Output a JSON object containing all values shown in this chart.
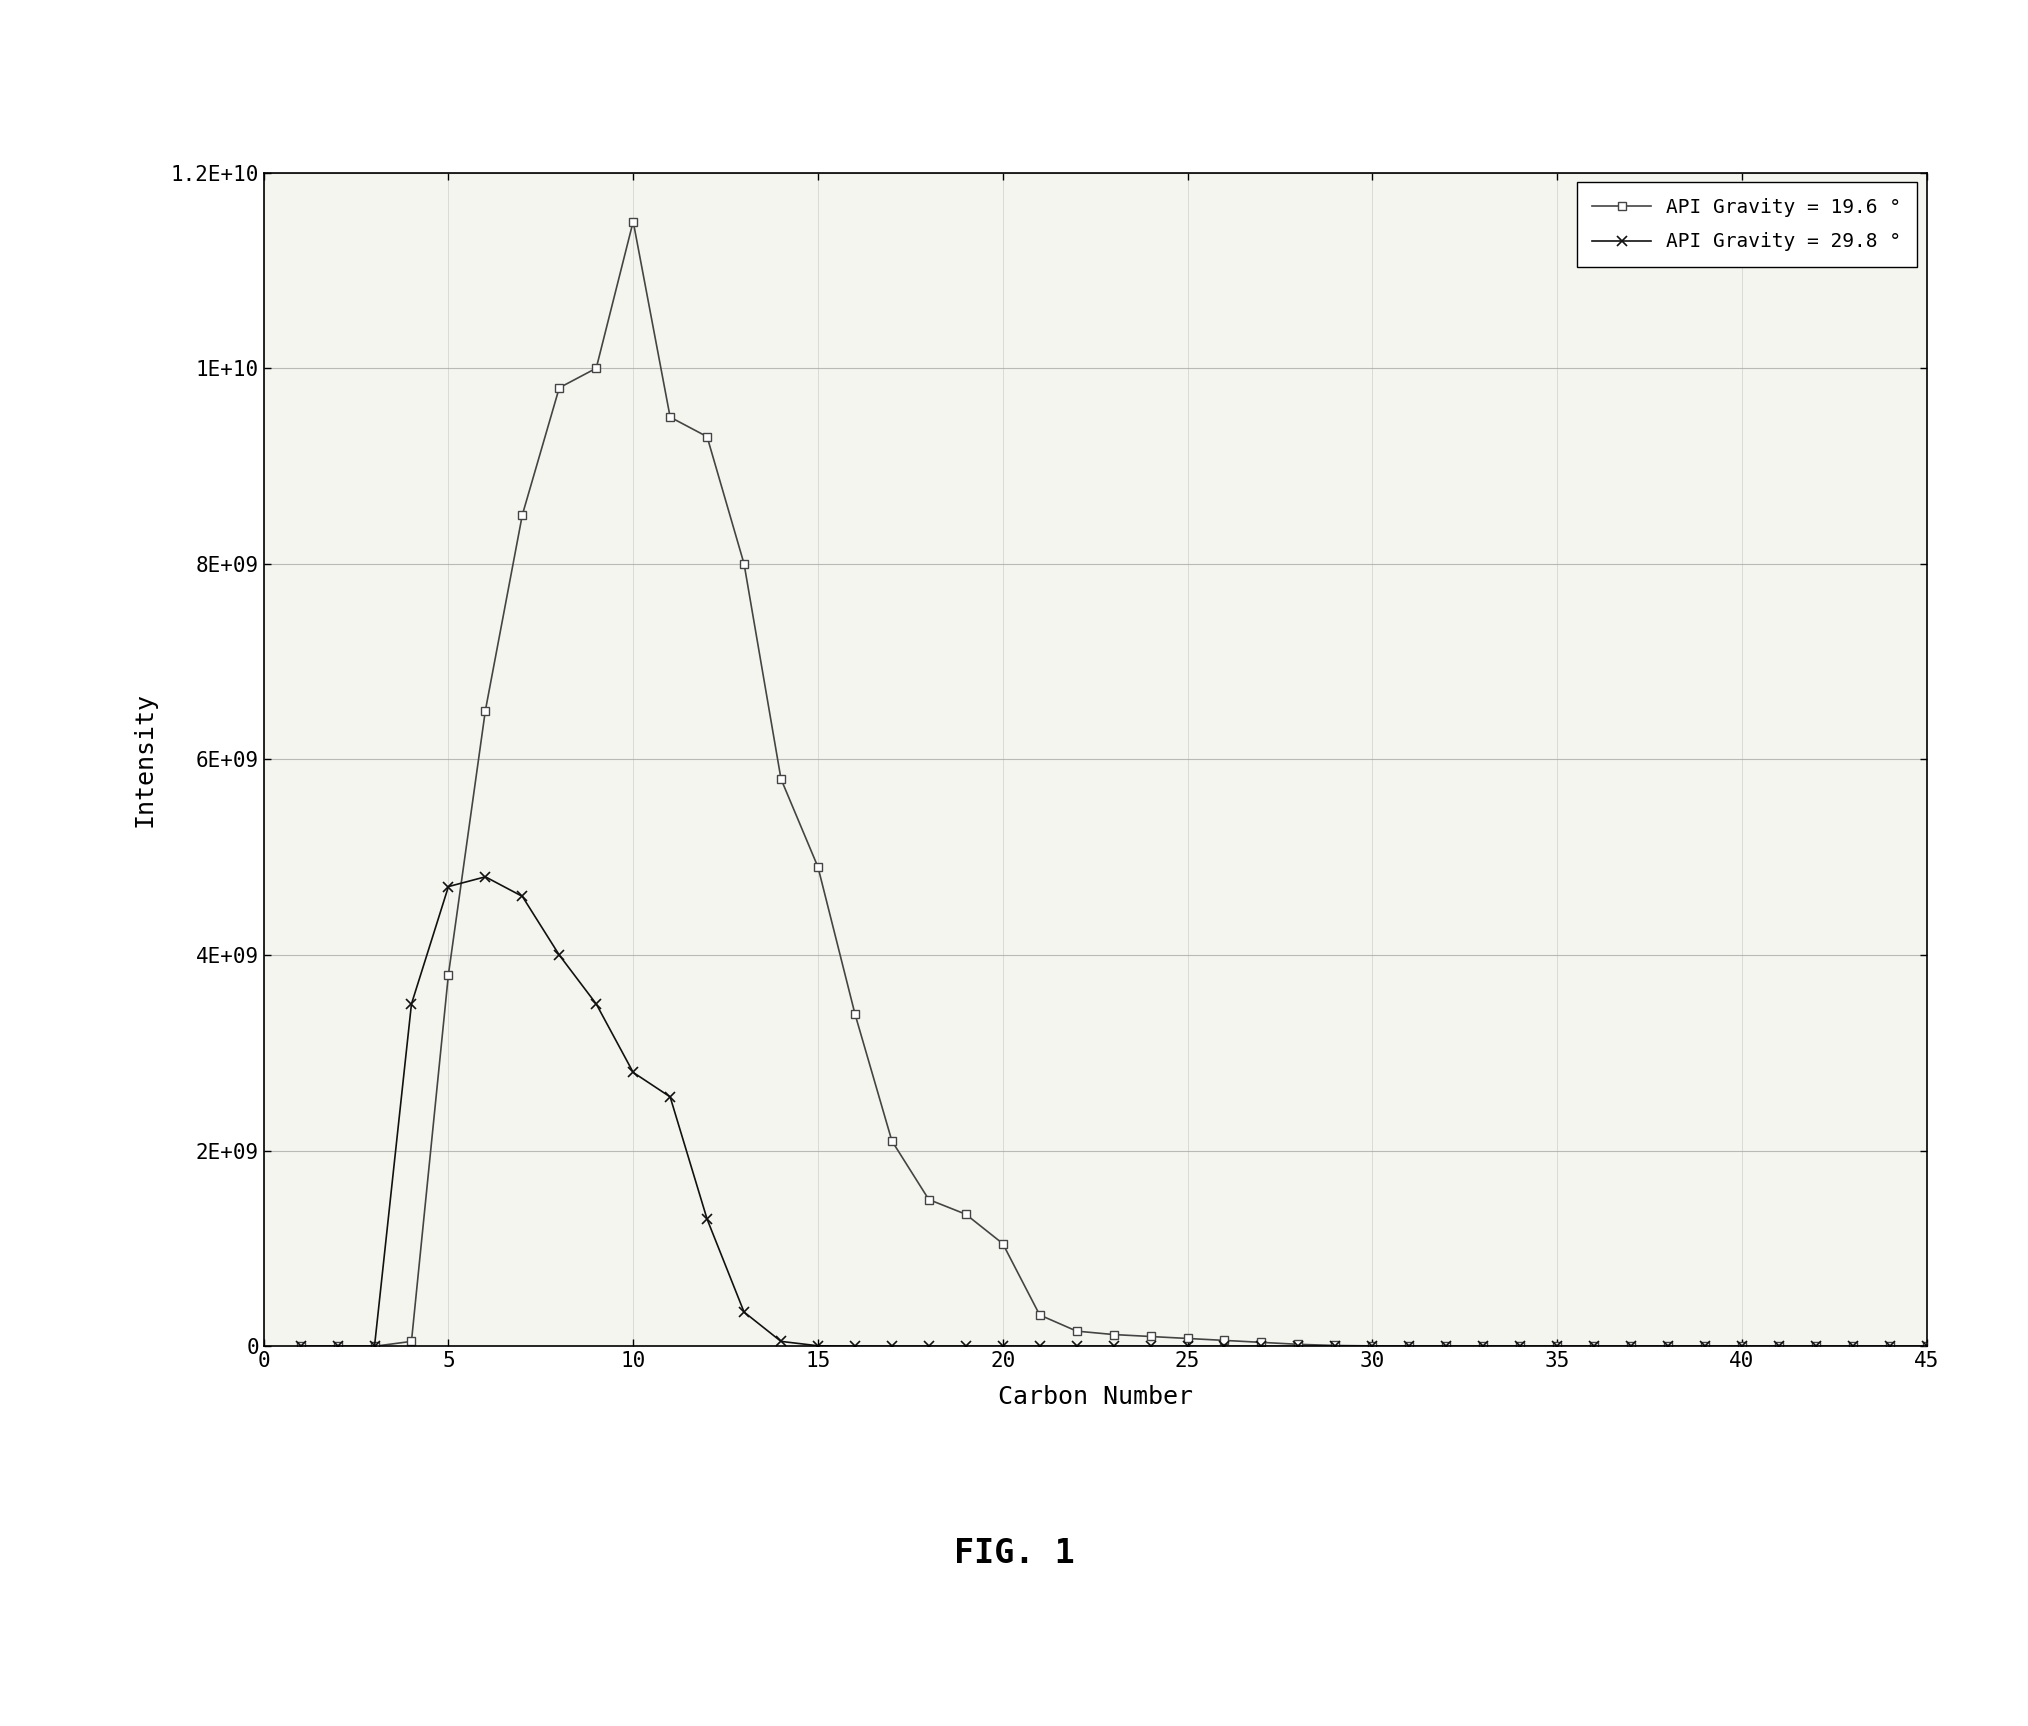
{
  "series1_label": "API Gravity = 19.6 °",
  "series2_label": "API Gravity = 29.8 °",
  "series1_x": [
    1,
    2,
    3,
    4,
    5,
    6,
    7,
    8,
    9,
    10,
    11,
    12,
    13,
    14,
    15,
    16,
    17,
    18,
    19,
    20,
    21,
    22,
    23,
    24,
    25,
    26,
    27,
    28,
    29,
    30,
    31,
    32,
    33,
    34,
    35,
    36,
    37,
    38,
    39,
    40,
    41,
    42,
    43,
    44,
    45
  ],
  "series1_y": [
    0,
    0,
    0,
    50000000.0,
    3800000000.0,
    6500000000.0,
    8500000000.0,
    9800000000.0,
    10000000000.0,
    11500000000.0,
    9500000000.0,
    9300000000.0,
    8000000000.0,
    5800000000.0,
    4900000000.0,
    3400000000.0,
    2100000000.0,
    1500000000.0,
    1350000000.0,
    1050000000.0,
    320000000.0,
    155000000.0,
    120000000.0,
    100000000.0,
    80000000.0,
    60000000.0,
    40000000.0,
    20000000.0,
    8000000.0,
    4000000.0,
    2000000.0,
    800000.0,
    400000.0,
    200000.0,
    100000.0,
    50000.0,
    20000.0,
    10000.0,
    5000.0,
    2000.0,
    1000.0,
    500.0,
    200.0,
    100.0,
    0
  ],
  "series2_x": [
    1,
    2,
    3,
    4,
    5,
    6,
    7,
    8,
    9,
    10,
    11,
    12,
    13,
    14,
    15,
    16,
    17,
    18,
    19,
    20,
    21,
    22,
    23,
    24,
    25,
    26,
    27,
    28,
    29,
    30,
    31,
    32,
    33,
    34,
    35,
    36,
    37,
    38,
    39,
    40,
    41,
    42,
    43,
    44,
    45
  ],
  "series2_y": [
    0,
    0,
    0,
    3500000000.0,
    4700000000.0,
    4800000000.0,
    4600000000.0,
    4000000000.0,
    3500000000.0,
    2800000000.0,
    2550000000.0,
    1300000000.0,
    350000000.0,
    50000000.0,
    5000000.0,
    1000000.0,
    200000.0,
    50000.0,
    0,
    0,
    0,
    0,
    0,
    0,
    0,
    0,
    0,
    0,
    0,
    0,
    0,
    0,
    0,
    0,
    0,
    0,
    0,
    0,
    0,
    0,
    0,
    0,
    0,
    0,
    0
  ],
  "xlabel": "Carbon Number",
  "ylabel": "Intensity",
  "xlim": [
    0,
    45
  ],
  "ylim": [
    0,
    12000000000.0
  ],
  "yticks": [
    0,
    2000000000,
    4000000000,
    6000000000,
    8000000000,
    10000000000,
    12000000000
  ],
  "ytick_labels": [
    "0",
    "2E+09",
    "4E+09",
    "6E+09",
    "8E+09",
    "1E+10",
    "1.2E+10"
  ],
  "xticks": [
    0,
    5,
    10,
    15,
    20,
    25,
    30,
    35,
    40,
    45
  ],
  "figure_caption": "FIG. 1",
  "line1_color": "#444444",
  "line2_color": "#111111",
  "marker1": "s",
  "marker2": "x",
  "background_color": "#ffffff",
  "grid_color": "#aaaaaa",
  "plot_bg_color": "#f5f5f0"
}
